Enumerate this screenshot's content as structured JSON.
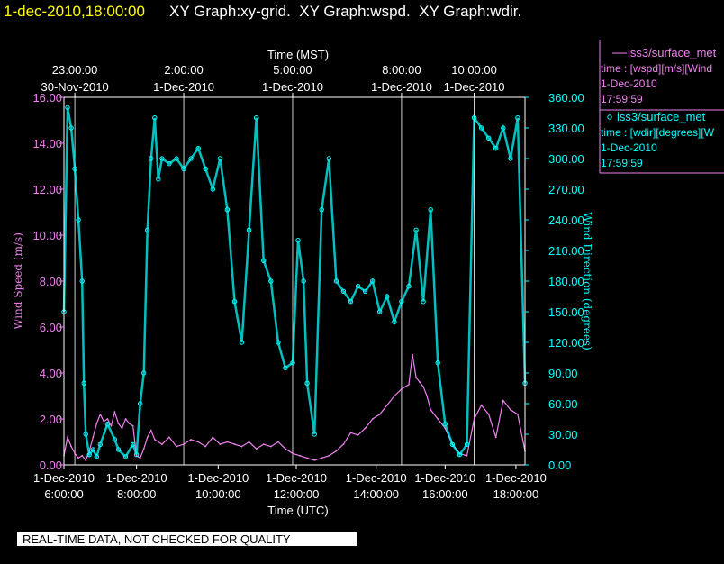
{
  "header": {
    "timestamp": "1-dec-2010,18:00:00",
    "titles": "XY Graph:xy-grid.  XY Graph:wspd.  XY Graph:wdir."
  },
  "footer": {
    "notice": "REAL-TIME DATA, NOT CHECKED FOR QUALITY"
  },
  "legend": [
    {
      "line1": "iss3/surface_met",
      "line2": "time : [wspd][m/s][Wind",
      "line3": "1-Dec-2010",
      "line4": "17:59:59",
      "color": "#ee82ee",
      "marker": "line"
    },
    {
      "line1": "iss3/surface_met",
      "line2": "time : [wdir][degrees][W",
      "line3": "1-Dec-2010",
      "line4": "17:59:59",
      "color": "#00ffff",
      "marker": "circle"
    }
  ],
  "colors": {
    "background": "#000000",
    "wspd": "#ee82ee",
    "wdir": "#00ffff",
    "timestamp": "#ffff00",
    "text": "#ffffff"
  },
  "chart_data": {
    "type": "line",
    "xlabel_bottom": "Time (UTC)",
    "xlabel_top": "Time (MST)",
    "ylabel_left": "Wind Speed (m/s)",
    "ylabel_right": "Wind Direction (degrees)",
    "xlim_utc_hours": [
      5.5,
      18.2
    ],
    "ylim_left": [
      0,
      16
    ],
    "ylim_right": [
      0,
      360
    ],
    "grid": "vertical lines at top-axis ticks",
    "legend_placement": "right",
    "x_bottom_ticks": [
      {
        "hour": 5.5,
        "date": "1-Dec-2010",
        "time": "6:00:00"
      },
      {
        "hour": 7.5,
        "date": "1-Dec-2010",
        "time": "8:00:00"
      },
      {
        "hour": 9.75,
        "date": "1-Dec-2010",
        "time": "10:00:00"
      },
      {
        "hour": 11.9,
        "date": "1-Dec-2010",
        "time": "12:00:00"
      },
      {
        "hour": 14.1,
        "date": "1-Dec-2010",
        "time": "14:00:00"
      },
      {
        "hour": 16.0,
        "date": "1-Dec-2010",
        "time": "16:00:00"
      },
      {
        "hour": 17.95,
        "date": "1-Dec-2010",
        "time": "18:00:00"
      }
    ],
    "x_top_ticks": [
      {
        "hour": 5.8,
        "time": "23:00:00",
        "date": "30-Nov-2010"
      },
      {
        "hour": 8.8,
        "time": "2:00:00",
        "date": "1-Dec-2010"
      },
      {
        "hour": 11.8,
        "time": "5:00:00",
        "date": "1-Dec-2010"
      },
      {
        "hour": 14.8,
        "time": "8:00:00",
        "date": "1-Dec-2010"
      },
      {
        "hour": 16.8,
        "time": "10:00:00",
        "date": "1-Dec-2010"
      }
    ],
    "y_left_ticks": [
      "0.00",
      "2.00",
      "4.00",
      "6.00",
      "8.00",
      "10.00",
      "12.00",
      "14.00",
      "16.00"
    ],
    "y_right_ticks": [
      "0.00",
      "30.00",
      "60.00",
      "90.00",
      "120.00",
      "150.00",
      "180.00",
      "210.00",
      "240.00",
      "270.00",
      "300.00",
      "330.00",
      "360.00"
    ],
    "series": [
      {
        "name": "wspd",
        "axis": "left",
        "x": [
          5.5,
          5.6,
          5.7,
          5.8,
          5.9,
          6.0,
          6.1,
          6.2,
          6.3,
          6.4,
          6.5,
          6.6,
          6.7,
          6.8,
          6.9,
          7.0,
          7.1,
          7.2,
          7.3,
          7.4,
          7.5,
          7.6,
          7.7,
          7.8,
          7.9,
          8.0,
          8.2,
          8.4,
          8.6,
          8.8,
          9.0,
          9.2,
          9.4,
          9.6,
          9.8,
          10.0,
          10.2,
          10.4,
          10.6,
          10.8,
          11.0,
          11.2,
          11.4,
          11.6,
          11.8,
          12.0,
          12.2,
          12.4,
          12.6,
          12.8,
          13.0,
          13.2,
          13.4,
          13.6,
          13.8,
          14.0,
          14.2,
          14.4,
          14.6,
          14.8,
          15.0,
          15.1,
          15.2,
          15.3,
          15.4,
          15.5,
          15.6,
          15.8,
          16.0,
          16.2,
          16.4,
          16.6,
          16.8,
          17.0,
          17.2,
          17.4,
          17.6,
          17.8,
          18.0,
          18.2
        ],
        "values": [
          0.4,
          1.2,
          0.8,
          0.5,
          0.3,
          0.4,
          0.2,
          0.6,
          1.2,
          1.8,
          2.2,
          1.9,
          2.0,
          1.7,
          2.3,
          1.8,
          1.6,
          2.0,
          1.8,
          1.7,
          0.4,
          0.3,
          0.7,
          1.2,
          1.5,
          1.1,
          0.9,
          1.2,
          0.8,
          0.9,
          1.1,
          1.0,
          0.8,
          1.2,
          0.9,
          1.0,
          0.9,
          0.8,
          1.0,
          0.7,
          0.9,
          0.8,
          1.0,
          0.7,
          0.5,
          0.4,
          0.3,
          0.2,
          0.3,
          0.4,
          0.6,
          0.9,
          1.4,
          1.3,
          1.6,
          2.0,
          2.2,
          2.6,
          3.0,
          3.3,
          3.5,
          4.8,
          3.8,
          3.6,
          3.4,
          3.0,
          2.4,
          2.0,
          1.6,
          0.9,
          0.5,
          0.4,
          2.0,
          2.6,
          2.2,
          1.2,
          2.8,
          2.4,
          2.2,
          0.6
        ]
      },
      {
        "name": "wdir",
        "axis": "right",
        "x": [
          5.5,
          5.6,
          5.7,
          5.8,
          5.9,
          6.0,
          6.05,
          6.1,
          6.2,
          6.3,
          6.4,
          6.5,
          6.7,
          6.9,
          7.0,
          7.2,
          7.4,
          7.5,
          7.6,
          7.7,
          7.8,
          7.9,
          8.0,
          8.1,
          8.2,
          8.4,
          8.6,
          8.8,
          9.0,
          9.2,
          9.4,
          9.6,
          9.8,
          10.0,
          10.2,
          10.4,
          10.6,
          10.8,
          11.0,
          11.2,
          11.4,
          11.6,
          11.8,
          11.95,
          12.1,
          12.2,
          12.4,
          12.6,
          12.8,
          13.0,
          13.2,
          13.4,
          13.6,
          13.8,
          14.0,
          14.2,
          14.4,
          14.6,
          14.8,
          15.0,
          15.2,
          15.4,
          15.6,
          15.8,
          16.0,
          16.2,
          16.4,
          16.6,
          16.8,
          17.0,
          17.2,
          17.4,
          17.6,
          17.8,
          18.0,
          18.2
        ],
        "values": [
          150,
          350,
          330,
          290,
          240,
          180,
          80,
          30,
          10,
          15,
          8,
          20,
          40,
          25,
          15,
          8,
          20,
          10,
          60,
          90,
          230,
          300,
          340,
          280,
          300,
          295,
          300,
          290,
          300,
          310,
          290,
          270,
          300,
          250,
          160,
          120,
          230,
          340,
          200,
          180,
          120,
          95,
          100,
          220,
          180,
          80,
          30,
          250,
          300,
          180,
          170,
          160,
          175,
          170,
          180,
          150,
          165,
          140,
          160,
          175,
          230,
          160,
          250,
          100,
          40,
          20,
          10,
          20,
          340,
          330,
          320,
          310,
          330,
          300,
          340,
          80
        ]
      }
    ]
  }
}
